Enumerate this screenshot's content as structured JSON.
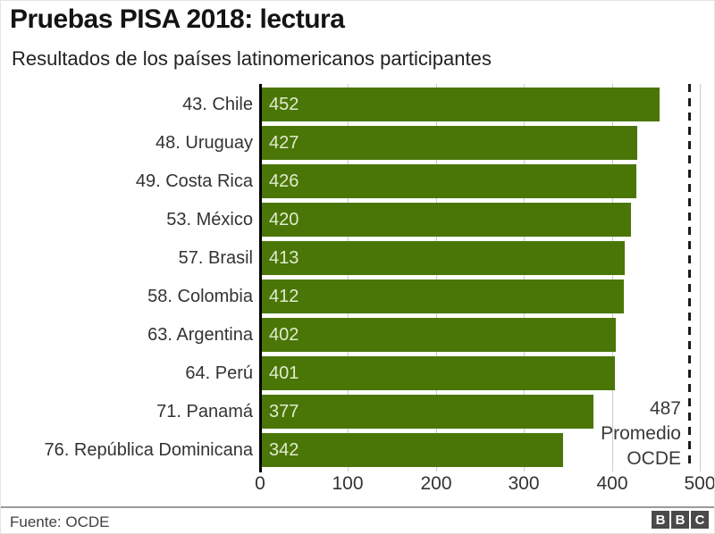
{
  "title": "Pruebas PISA 2018: lectura",
  "subtitle": "Resultados de los países latinomericanos participantes",
  "chart_data": {
    "type": "bar",
    "orientation": "horizontal",
    "categories": [
      "43. Chile",
      "48. Uruguay",
      "49. Costa Rica",
      "53. México",
      "57. Brasil",
      "58. Colombia",
      "63. Argentina",
      "64. Perú",
      "71. Panamá",
      "76. República Dominicana"
    ],
    "values": [
      452,
      427,
      426,
      420,
      413,
      412,
      402,
      401,
      377,
      342
    ],
    "xlim": [
      0,
      500
    ],
    "x_ticks": [
      0,
      100,
      200,
      300,
      400,
      500
    ],
    "grid": true,
    "legend": "none",
    "reference_line": {
      "value": 487,
      "label_lines": [
        "487",
        "Promedio",
        "OCDE"
      ]
    },
    "colors": {
      "bar": "#4a7608",
      "value_label": "#e1ebcd",
      "gridline": "#cccccc",
      "axis_line": "#000000",
      "reference_line": "#1a1a1a"
    }
  },
  "footer": {
    "source": "Fuente: OCDE",
    "logo_letters": [
      "B",
      "B",
      "C"
    ]
  }
}
